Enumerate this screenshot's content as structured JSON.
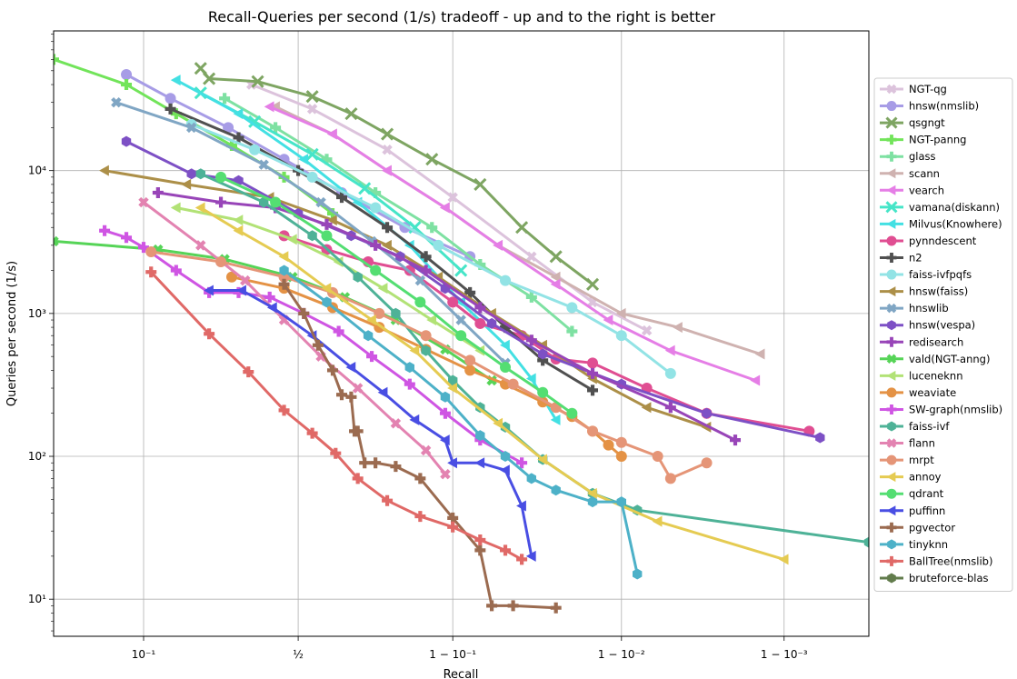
{
  "chart_data": {
    "type": "line",
    "title": "Recall-Queries per second (1/s) tradeoff - up and to the right is better",
    "xlabel": "Recall",
    "ylabel": "Queries per second (1/s)",
    "xscale": "logit",
    "yscale": "log",
    "xlim": [
      0.03,
      0.9997
    ],
    "ylim": [
      5.5,
      95000
    ],
    "grid": true,
    "legend": {
      "position": "right"
    },
    "xticks": [
      {
        "value": 0.1,
        "label": "10⁻¹"
      },
      {
        "value": 0.5,
        "label": "½"
      },
      {
        "value": 0.9,
        "label": "1 − 10⁻¹"
      },
      {
        "value": 0.99,
        "label": "1 − 10⁻²"
      },
      {
        "value": 0.999,
        "label": "1 − 10⁻³"
      }
    ],
    "yticks": [
      {
        "value": 10,
        "label": "10¹"
      },
      {
        "value": 100,
        "label": "10²"
      },
      {
        "value": 1000,
        "label": "10³"
      },
      {
        "value": 10000,
        "label": "10⁴"
      }
    ],
    "series": [
      {
        "name": "NGT-qg",
        "color": "#dcc3dc",
        "marker": "X",
        "x": [
          0.34,
          0.55,
          0.78,
          0.9,
          0.965,
          0.985,
          0.993
        ],
        "y": [
          40000,
          27000,
          14000,
          6500,
          2500,
          1200,
          760
        ]
      },
      {
        "name": "hnsw(nmslib)",
        "color": "#a79ce6",
        "marker": "o",
        "x": [
          0.08,
          0.14,
          0.27,
          0.45,
          0.65,
          0.82,
          0.92
        ],
        "y": [
          47000,
          32000,
          20000,
          12000,
          7000,
          4000,
          2500
        ]
      },
      {
        "name": "qsgngt",
        "color": "#7ea562",
        "marker": "x",
        "x": [
          0.2,
          0.22,
          0.36,
          0.55,
          0.68,
          0.78,
          0.87,
          0.93,
          0.96,
          0.975,
          0.985
        ],
        "y": [
          52000,
          44000,
          42000,
          33000,
          25000,
          18000,
          12000,
          8000,
          4000,
          2500,
          1600
        ]
      },
      {
        "name": "NGT-panng",
        "color": "#72e45a",
        "marker": "P",
        "x": [
          0.03,
          0.08,
          0.15,
          0.28,
          0.45,
          0.62
        ],
        "y": [
          60000,
          40000,
          25000,
          15000,
          9000,
          5000
        ]
      },
      {
        "name": "glass",
        "color": "#7ee1a2",
        "marker": "P",
        "x": [
          0.26,
          0.42,
          0.6,
          0.75,
          0.87,
          0.93,
          0.965,
          0.98
        ],
        "y": [
          32000,
          20000,
          12000,
          7000,
          4000,
          2200,
          1300,
          750
        ]
      },
      {
        "name": "scann",
        "color": "#cfb2b0",
        "marker": "<",
        "x": [
          0.42,
          0.62,
          0.78,
          0.89,
          0.945,
          0.975,
          0.99,
          0.9955,
          0.9986
        ],
        "y": [
          28000,
          18000,
          10000,
          5500,
          3000,
          1800,
          1000,
          800,
          520
        ]
      },
      {
        "name": "vearch",
        "color": "#e57ee6",
        "marker": "<",
        "x": [
          0.4,
          0.62,
          0.78,
          0.89,
          0.945,
          0.975,
          0.988,
          0.995,
          0.9985
        ],
        "y": [
          28000,
          18000,
          10000,
          5500,
          3000,
          1600,
          900,
          550,
          340
        ]
      },
      {
        "name": "vamana(diskann)",
        "color": "#46e5c8",
        "marker": "+",
        "x": [
          0.2,
          0.35,
          0.55,
          0.72,
          0.84,
          0.91
        ],
        "y": [
          35000,
          22000,
          13000,
          7500,
          4000,
          2000
        ]
      },
      {
        "name": "Milvus(Knowhere)",
        "color": "#43e0e3",
        "marker": "<",
        "x": [
          0.15,
          0.3,
          0.52,
          0.7,
          0.83,
          0.91,
          0.95,
          0.965,
          0.975
        ],
        "y": [
          43000,
          25000,
          12000,
          6000,
          3000,
          1200,
          600,
          350,
          180
        ]
      },
      {
        "name": "pynndescent",
        "color": "#e04e92",
        "marker": "o",
        "x": [
          0.45,
          0.6,
          0.73,
          0.83,
          0.9,
          0.93,
          0.96,
          0.975,
          0.985,
          0.993,
          0.997,
          0.9993
        ],
        "y": [
          3500,
          2800,
          2300,
          2000,
          1200,
          850,
          700,
          480,
          450,
          300,
          200,
          150
        ]
      },
      {
        "name": "n2",
        "color": "#505050",
        "marker": "P",
        "x": [
          0.14,
          0.3,
          0.5,
          0.65,
          0.78,
          0.86,
          0.92,
          0.95,
          0.97,
          0.985
        ],
        "y": [
          27000,
          17000,
          10000,
          6500,
          4000,
          2500,
          1400,
          800,
          470,
          290
        ]
      },
      {
        "name": "faiss-ivfpqfs",
        "color": "#92e3e5",
        "marker": "o",
        "x": [
          0.18,
          0.35,
          0.55,
          0.75,
          0.88,
          0.95,
          0.98,
          0.99,
          0.995
        ],
        "y": [
          21000,
          14000,
          9000,
          5500,
          3000,
          1700,
          1100,
          700,
          380
        ]
      },
      {
        "name": "hnsw(faiss)",
        "color": "#ac8f48",
        "marker": "<",
        "x": [
          0.06,
          0.17,
          0.4,
          0.62,
          0.78,
          0.88,
          0.94,
          0.97,
          0.985,
          0.993,
          0.997
        ],
        "y": [
          10000,
          8000,
          6500,
          4500,
          3000,
          1800,
          1000,
          600,
          350,
          220,
          160
        ]
      },
      {
        "name": "hnswlib",
        "color": "#80a6c4",
        "marker": "X",
        "x": [
          0.07,
          0.18,
          0.38,
          0.58,
          0.74,
          0.85,
          0.91,
          0.95
        ],
        "y": [
          30000,
          20000,
          11000,
          6000,
          3200,
          1700,
          900,
          450
        ]
      },
      {
        "name": "hnsw(vespa)",
        "color": "#7d50c5",
        "marker": "h",
        "x": [
          0.08,
          0.18,
          0.3,
          0.5,
          0.68,
          0.81,
          0.89,
          0.94,
          0.97,
          0.99,
          0.997,
          0.9994
        ],
        "y": [
          16000,
          9500,
          8500,
          5000,
          3500,
          2500,
          1500,
          850,
          520,
          320,
          200,
          135
        ]
      },
      {
        "name": "redisearch",
        "color": "#9845b8",
        "marker": "P",
        "x": [
          0.12,
          0.25,
          0.42,
          0.6,
          0.75,
          0.86,
          0.93,
          0.965,
          0.985,
          0.995,
          0.998
        ],
        "y": [
          7000,
          6000,
          5500,
          4200,
          3000,
          2000,
          1100,
          650,
          380,
          220,
          130
        ]
      },
      {
        "name": "vald(NGT-anng)",
        "color": "#56d457",
        "marker": "X",
        "x": [
          0.03,
          0.12,
          0.26,
          0.48,
          0.66,
          0.8,
          0.89,
          0.94
        ],
        "y": [
          3200,
          2800,
          2400,
          1800,
          1300,
          900,
          560,
          340
        ]
      },
      {
        "name": "luceneknn",
        "color": "#b2e276",
        "marker": "<",
        "x": [
          0.15,
          0.3,
          0.48,
          0.64,
          0.77,
          0.87,
          0.93
        ],
        "y": [
          5500,
          4500,
          3300,
          2300,
          1500,
          900,
          550
        ]
      },
      {
        "name": "weaviate",
        "color": "#e49245",
        "marker": "o",
        "x": [
          0.28,
          0.45,
          0.62,
          0.76,
          0.86,
          0.92,
          0.95,
          0.97,
          0.98,
          0.985,
          0.988,
          0.99
        ],
        "y": [
          1800,
          1500,
          1100,
          800,
          560,
          400,
          320,
          240,
          190,
          150,
          120,
          100
        ]
      },
      {
        "name": "SW-graph(nmslib)",
        "color": "#cf55e3",
        "marker": "P",
        "x": [
          0.06,
          0.08,
          0.1,
          0.15,
          0.22,
          0.3,
          0.4,
          0.52,
          0.64,
          0.74,
          0.83,
          0.89,
          0.93,
          0.96
        ],
        "y": [
          3800,
          3400,
          2900,
          2000,
          1400,
          1400,
          1300,
          1000,
          750,
          500,
          320,
          200,
          130,
          90
        ]
      },
      {
        "name": "faiss-ivf",
        "color": "#4eb297",
        "marker": "h",
        "x": [
          0.2,
          0.38,
          0.55,
          0.7,
          0.8,
          0.86,
          0.9,
          0.93,
          0.95,
          0.97,
          0.985,
          0.992,
          0.9997
        ],
        "y": [
          9500,
          6000,
          3500,
          1800,
          1000,
          550,
          340,
          220,
          160,
          95,
          55,
          42,
          25
        ]
      },
      {
        "name": "flann",
        "color": "#e383b1",
        "marker": "X",
        "x": [
          0.1,
          0.2,
          0.32,
          0.45,
          0.58,
          0.7,
          0.8,
          0.86,
          0.89
        ],
        "y": [
          6000,
          3000,
          1700,
          900,
          500,
          300,
          170,
          110,
          75
        ]
      },
      {
        "name": "mrpt",
        "color": "#e59577",
        "marker": "o",
        "x": [
          0.11,
          0.25,
          0.45,
          0.62,
          0.76,
          0.86,
          0.92,
          0.955,
          0.975,
          0.985,
          0.99,
          0.994,
          0.995,
          0.997
        ],
        "y": [
          2700,
          2300,
          1800,
          1400,
          1000,
          700,
          470,
          320,
          220,
          150,
          125,
          100,
          70,
          90
        ]
      },
      {
        "name": "annoy",
        "color": "#e5cb52",
        "marker": "<",
        "x": [
          0.2,
          0.3,
          0.45,
          0.6,
          0.74,
          0.84,
          0.9,
          0.945,
          0.97,
          0.985,
          0.994,
          0.999
        ],
        "y": [
          5500,
          3800,
          2500,
          1500,
          900,
          550,
          300,
          170,
          95,
          55,
          35,
          19
        ]
      },
      {
        "name": "qdrant",
        "color": "#54de72",
        "marker": "o",
        "x": [
          0.25,
          0.42,
          0.6,
          0.75,
          0.85,
          0.91,
          0.95,
          0.97,
          0.98
        ],
        "y": [
          9000,
          6000,
          3500,
          2000,
          1200,
          700,
          420,
          280,
          200
        ]
      },
      {
        "name": "puffinn",
        "color": "#494ee3",
        "marker": "<",
        "x": [
          0.22,
          0.31,
          0.41,
          0.55,
          0.68,
          0.77,
          0.84,
          0.89,
          0.9,
          0.93,
          0.95,
          0.96,
          0.965
        ],
        "y": [
          1450,
          1450,
          1100,
          700,
          420,
          280,
          180,
          130,
          90,
          90,
          80,
          45,
          20
        ]
      },
      {
        "name": "pgvector",
        "color": "#9b6b50",
        "marker": "P",
        "x": [
          0.45,
          0.52,
          0.57,
          0.62,
          0.65,
          0.68,
          0.69,
          0.7,
          0.72,
          0.75,
          0.8,
          0.85,
          0.9,
          0.93,
          0.94,
          0.955,
          0.975
        ],
        "y": [
          1600,
          1000,
          600,
          400,
          270,
          260,
          150,
          150,
          90,
          90,
          85,
          70,
          37,
          22,
          9,
          9,
          8.7
        ]
      },
      {
        "name": "tinyknn",
        "color": "#4db1c8",
        "marker": "h",
        "x": [
          0.45,
          0.6,
          0.73,
          0.83,
          0.89,
          0.93,
          0.95,
          0.965,
          0.975,
          0.985,
          0.99,
          0.992
        ],
        "y": [
          2000,
          1200,
          700,
          420,
          260,
          140,
          100,
          70,
          58,
          48,
          48,
          15
        ]
      },
      {
        "name": "BallTree(nmslib)",
        "color": "#e06967",
        "marker": "P",
        "x": [
          0.11,
          0.22,
          0.33,
          0.45,
          0.55,
          0.63,
          0.7,
          0.78,
          0.85,
          0.9,
          0.93,
          0.95,
          0.96
        ],
        "y": [
          1950,
          720,
          390,
          210,
          145,
          105,
          70,
          49,
          38,
          32,
          26,
          22,
          19
        ]
      },
      {
        "name": "bruteforce-blas",
        "color": "#627c4c",
        "marker": "h",
        "x": [],
        "y": []
      }
    ]
  }
}
